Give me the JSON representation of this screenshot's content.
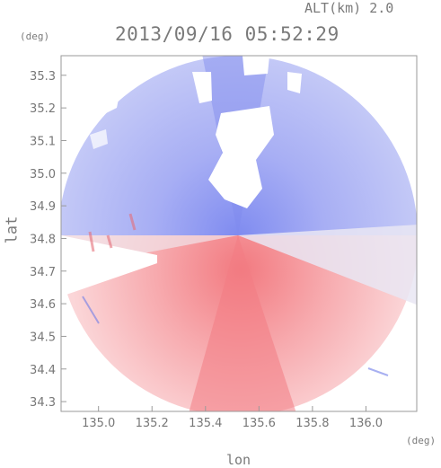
{
  "header": {
    "altitude": "ALT(km) 2.0",
    "timestamp": "2013/09/16 05:52:29"
  },
  "axes": {
    "y_unit": "(deg)",
    "x_unit": "(deg)",
    "ylabel": "lat",
    "xlabel": "lon",
    "xticks": [
      "135.0",
      "135.2",
      "135.4",
      "135.6",
      "135.8",
      "136.0"
    ],
    "yticks": [
      "35.3",
      "35.2",
      "35.1",
      "35.0",
      "34.9",
      "34.8",
      "34.7",
      "34.6",
      "34.5",
      "34.4",
      "34.3"
    ]
  },
  "map": {
    "type": "radar doppler velocity PPI",
    "center_lon": 135.52,
    "center_lat": 34.82,
    "lon_range": [
      134.86,
      136.19
    ],
    "lat_range": [
      34.27,
      35.36
    ],
    "colors": {
      "toward": "#8c96f0",
      "away": "#f07882",
      "neutral": "#f4f4f8"
    }
  }
}
